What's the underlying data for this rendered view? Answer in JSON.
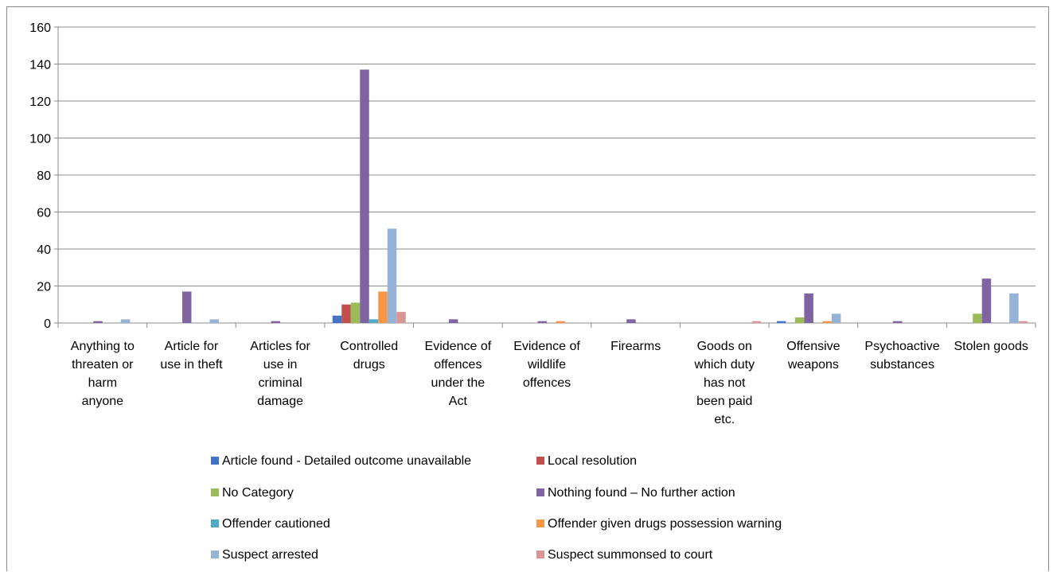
{
  "chart_data": {
    "type": "bar",
    "title": "",
    "xlabel": "",
    "ylabel": "",
    "ylim": [
      0,
      160
    ],
    "yticks": [
      0,
      20,
      40,
      60,
      80,
      100,
      120,
      140,
      160
    ],
    "grid": true,
    "legend_position": "bottom",
    "categories": [
      "Anything to threaten or harm anyone",
      "Article for use in theft",
      "Articles for use in criminal damage",
      "Controlled drugs",
      "Evidence of offences under the Act",
      "Evidence of wildlife offences",
      "Firearms",
      "Goods on which duty has not been paid etc.",
      "Offensive weapons",
      "Psychoactive substances",
      "Stolen goods"
    ],
    "category_lines": [
      [
        "Anything to",
        "threaten or",
        "harm",
        "anyone"
      ],
      [
        "Article for",
        "use in theft"
      ],
      [
        "Articles for",
        "use in",
        "criminal",
        "damage"
      ],
      [
        "Controlled",
        "drugs"
      ],
      [
        "Evidence of",
        "offences",
        "under the",
        "Act"
      ],
      [
        "Evidence of",
        "wildlife",
        "offences"
      ],
      [
        "Firearms"
      ],
      [
        "Goods on",
        "which duty",
        "has not",
        "been paid",
        "etc."
      ],
      [
        "Offensive",
        "weapons"
      ],
      [
        "Psychoactive",
        "substances"
      ],
      [
        "Stolen goods"
      ]
    ],
    "series": [
      {
        "name": "Article found - Detailed outcome unavailable",
        "color": "#4472C4",
        "values": [
          0,
          0,
          0,
          4,
          0,
          0,
          0,
          0,
          1,
          0,
          0
        ]
      },
      {
        "name": "Local resolution",
        "color": "#C0504D",
        "values": [
          0,
          0,
          0,
          10,
          0,
          0,
          0,
          0,
          0,
          0,
          0
        ]
      },
      {
        "name": "No Category",
        "color": "#9BBB59",
        "values": [
          0,
          0,
          0,
          11,
          0,
          0,
          0,
          0,
          3,
          0,
          5
        ]
      },
      {
        "name": "Nothing found – No further action",
        "color": "#8064A2",
        "values": [
          1,
          17,
          1,
          137,
          2,
          1,
          2,
          0,
          16,
          1,
          24
        ]
      },
      {
        "name": "Offender cautioned",
        "color": "#4BACC6",
        "values": [
          0,
          0,
          0,
          2,
          0,
          0,
          0,
          0,
          0,
          0,
          0
        ]
      },
      {
        "name": "Offender given drugs possession warning",
        "color": "#F79646",
        "values": [
          0,
          0,
          0,
          17,
          0,
          1,
          0,
          0,
          1,
          0,
          0
        ]
      },
      {
        "name": "Suspect arrested",
        "color": "#95B3D7",
        "values": [
          2,
          2,
          0,
          51,
          0,
          0,
          0,
          0,
          5,
          0,
          16
        ]
      },
      {
        "name": "Suspect summonsed to court",
        "color": "#D99694",
        "values": [
          0,
          0,
          0,
          6,
          0,
          0,
          0,
          1,
          0,
          0,
          1
        ]
      }
    ]
  }
}
